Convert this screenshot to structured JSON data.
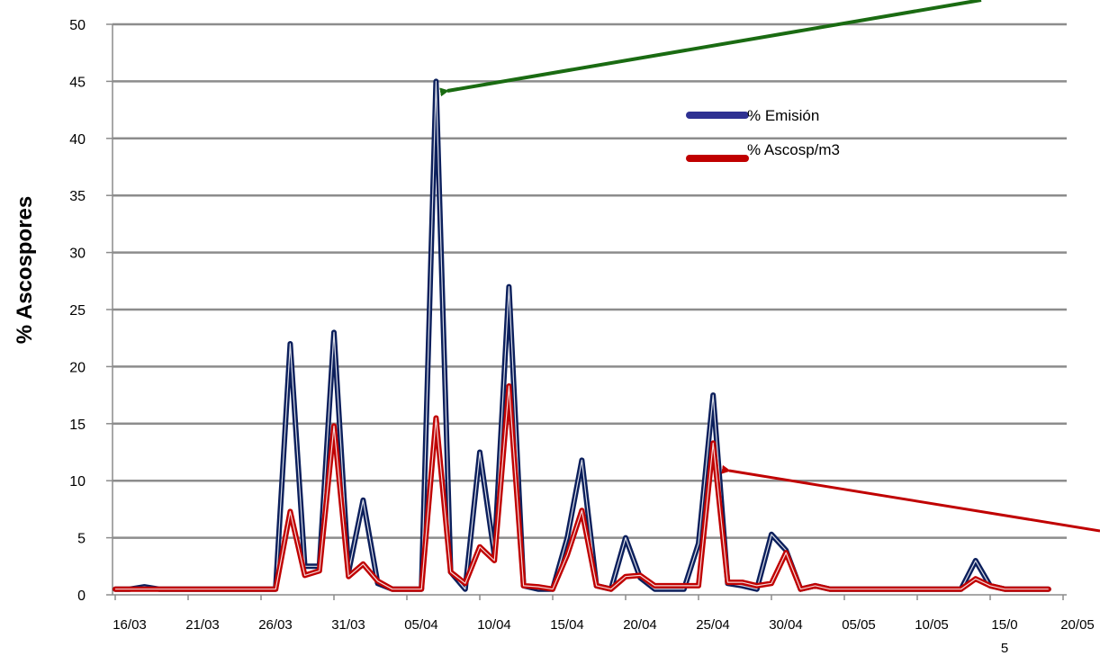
{
  "chart_data": {
    "type": "line",
    "ylabel": "% Ascospores",
    "xlabel": "",
    "ylim": [
      0,
      50
    ],
    "yticks": [
      0,
      5,
      10,
      15,
      20,
      25,
      30,
      35,
      40,
      45,
      50
    ],
    "x_tick_labels": [
      "16/03",
      "21/03",
      "26/03",
      "31/03",
      "05/04",
      "10/04",
      "15/04",
      "20/04",
      "25/04",
      "30/04",
      "05/05",
      "10/05",
      "15/0\n5",
      "20/05"
    ],
    "grid": true,
    "legend_position": "top-right",
    "colors": {
      "emision": "#0b1f5c",
      "ascosp": "#c00000",
      "arrow_green": "#1a6b12",
      "arrow_red": "#c00000",
      "grid": "#8c8c8c",
      "legend_emision": "#2e3192"
    },
    "series": [
      {
        "name": "% Emisión",
        "color": "#0b1f5c",
        "points": [
          [
            0,
            0.5
          ],
          [
            1,
            0.5
          ],
          [
            2,
            0.7
          ],
          [
            3,
            0.5
          ],
          [
            4,
            0.5
          ],
          [
            5,
            0.5
          ],
          [
            6,
            0.5
          ],
          [
            7,
            0.5
          ],
          [
            8,
            0.5
          ],
          [
            9,
            0.5
          ],
          [
            10,
            0.5
          ],
          [
            11,
            0.5
          ],
          [
            12,
            22
          ],
          [
            13,
            2.5
          ],
          [
            14,
            2.5
          ],
          [
            15,
            23
          ],
          [
            16,
            2
          ],
          [
            17,
            8.3
          ],
          [
            18,
            1
          ],
          [
            19,
            0.5
          ],
          [
            20,
            0.5
          ],
          [
            21,
            0.5
          ],
          [
            22,
            45
          ],
          [
            23,
            2
          ],
          [
            24,
            0.5
          ],
          [
            25,
            12.5
          ],
          [
            26,
            3.5
          ],
          [
            27,
            27
          ],
          [
            28,
            0.8
          ],
          [
            29,
            0.5
          ],
          [
            30,
            0.5
          ],
          [
            31,
            5
          ],
          [
            32,
            11.8
          ],
          [
            33,
            0.8
          ],
          [
            34,
            0.5
          ],
          [
            35,
            5
          ],
          [
            36,
            1.5
          ],
          [
            37,
            0.5
          ],
          [
            38,
            0.5
          ],
          [
            39,
            0.5
          ],
          [
            40,
            4.5
          ],
          [
            41,
            17.5
          ],
          [
            42,
            1
          ],
          [
            43,
            0.8
          ],
          [
            44,
            0.5
          ],
          [
            45,
            5.3
          ],
          [
            46,
            3.9
          ],
          [
            47,
            0.5
          ],
          [
            48,
            0.8
          ],
          [
            49,
            0.5
          ],
          [
            50,
            0.5
          ],
          [
            51,
            0.5
          ],
          [
            52,
            0.5
          ],
          [
            53,
            0.5
          ],
          [
            54,
            0.5
          ],
          [
            55,
            0.5
          ],
          [
            56,
            0.5
          ],
          [
            57,
            0.5
          ],
          [
            58,
            0.5
          ],
          [
            59,
            3
          ],
          [
            60,
            0.8
          ],
          [
            61,
            0.5
          ],
          [
            62,
            0.5
          ],
          [
            63,
            0.5
          ],
          [
            64,
            0.5
          ]
        ]
      },
      {
        "name": "% Ascosp/m3",
        "color": "#c00000",
        "points": [
          [
            0,
            0.5
          ],
          [
            1,
            0.5
          ],
          [
            2,
            0.5
          ],
          [
            3,
            0.5
          ],
          [
            4,
            0.5
          ],
          [
            5,
            0.5
          ],
          [
            6,
            0.5
          ],
          [
            7,
            0.5
          ],
          [
            8,
            0.5
          ],
          [
            9,
            0.5
          ],
          [
            10,
            0.5
          ],
          [
            11,
            0.5
          ],
          [
            12,
            7.3
          ],
          [
            13,
            1.7
          ],
          [
            14,
            2.1
          ],
          [
            15,
            14.8
          ],
          [
            16,
            1.6
          ],
          [
            17,
            2.7
          ],
          [
            18,
            1.2
          ],
          [
            19,
            0.5
          ],
          [
            20,
            0.5
          ],
          [
            21,
            0.5
          ],
          [
            22,
            15.5
          ],
          [
            23,
            2
          ],
          [
            24,
            1
          ],
          [
            25,
            4.2
          ],
          [
            26,
            3
          ],
          [
            27,
            18.3
          ],
          [
            28,
            0.8
          ],
          [
            29,
            0.7
          ],
          [
            30,
            0.5
          ],
          [
            31,
            3.5
          ],
          [
            32,
            7.4
          ],
          [
            33,
            0.8
          ],
          [
            34,
            0.5
          ],
          [
            35,
            1.6
          ],
          [
            36,
            1.7
          ],
          [
            37,
            0.8
          ],
          [
            38,
            0.8
          ],
          [
            39,
            0.8
          ],
          [
            40,
            0.8
          ],
          [
            41,
            13.3
          ],
          [
            42,
            1.1
          ],
          [
            43,
            1.1
          ],
          [
            44,
            0.8
          ],
          [
            45,
            1
          ],
          [
            46,
            3.7
          ],
          [
            47,
            0.5
          ],
          [
            48,
            0.8
          ],
          [
            49,
            0.5
          ],
          [
            50,
            0.5
          ],
          [
            51,
            0.5
          ],
          [
            52,
            0.5
          ],
          [
            53,
            0.5
          ],
          [
            54,
            0.5
          ],
          [
            55,
            0.5
          ],
          [
            56,
            0.5
          ],
          [
            57,
            0.5
          ],
          [
            58,
            0.5
          ],
          [
            59,
            1.4
          ],
          [
            60,
            0.8
          ],
          [
            61,
            0.5
          ],
          [
            62,
            0.5
          ],
          [
            63,
            0.5
          ],
          [
            64,
            0.5
          ]
        ]
      }
    ]
  }
}
